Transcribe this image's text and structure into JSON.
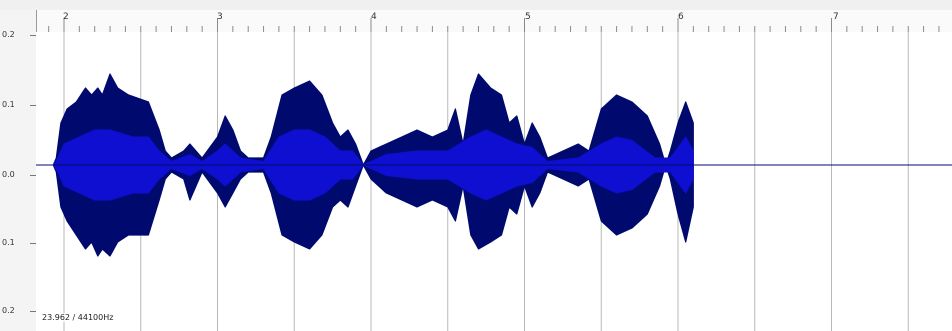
{
  "ruler": {
    "labels": [
      "2",
      "3",
      "4",
      "5",
      "6",
      "7"
    ]
  },
  "y_axis": {
    "labels": [
      "0.2",
      "0.1",
      "0.0",
      "0.1",
      "0.2"
    ]
  },
  "status": {
    "readout": "23.962 / 44100Hz"
  },
  "colors": {
    "wave_outer": "#000a6e",
    "wave_inner": "#0f0fd2",
    "gridline": "#b8b8b8"
  },
  "waveform": {
    "time_start": 1.93,
    "time_end": 7.93,
    "outer_upper": [
      [
        1.93,
        0.0
      ],
      [
        1.95,
        0.01
      ],
      [
        1.98,
        0.06
      ],
      [
        2.02,
        0.08
      ],
      [
        2.08,
        0.09
      ],
      [
        2.14,
        0.11
      ],
      [
        2.18,
        0.1
      ],
      [
        2.22,
        0.11
      ],
      [
        2.25,
        0.1
      ],
      [
        2.3,
        0.13
      ],
      [
        2.35,
        0.11
      ],
      [
        2.42,
        0.1
      ],
      [
        2.55,
        0.09
      ],
      [
        2.62,
        0.05
      ],
      [
        2.66,
        0.02
      ],
      [
        2.7,
        0.01
      ],
      [
        2.78,
        0.02
      ],
      [
        2.82,
        0.03
      ],
      [
        2.86,
        0.02
      ],
      [
        2.9,
        0.01
      ],
      [
        3.0,
        0.04
      ],
      [
        3.05,
        0.07
      ],
      [
        3.1,
        0.05
      ],
      [
        3.15,
        0.02
      ],
      [
        3.2,
        0.01
      ],
      [
        3.3,
        0.01
      ],
      [
        3.35,
        0.04
      ],
      [
        3.42,
        0.1
      ],
      [
        3.5,
        0.11
      ],
      [
        3.6,
        0.12
      ],
      [
        3.68,
        0.1
      ],
      [
        3.75,
        0.06
      ],
      [
        3.8,
        0.04
      ],
      [
        3.85,
        0.05
      ],
      [
        3.9,
        0.03
      ],
      [
        3.95,
        0.0
      ],
      [
        4.0,
        0.02
      ],
      [
        4.1,
        0.03
      ],
      [
        4.2,
        0.04
      ],
      [
        4.3,
        0.05
      ],
      [
        4.4,
        0.04
      ],
      [
        4.5,
        0.05
      ],
      [
        4.55,
        0.08
      ],
      [
        4.6,
        0.03
      ],
      [
        4.65,
        0.1
      ],
      [
        4.7,
        0.13
      ],
      [
        4.78,
        0.11
      ],
      [
        4.85,
        0.1
      ],
      [
        4.9,
        0.06
      ],
      [
        4.95,
        0.07
      ],
      [
        5.0,
        0.03
      ],
      [
        5.05,
        0.06
      ],
      [
        5.1,
        0.04
      ],
      [
        5.15,
        0.01
      ],
      [
        5.25,
        0.02
      ],
      [
        5.35,
        0.03
      ],
      [
        5.42,
        0.02
      ],
      [
        5.5,
        0.08
      ],
      [
        5.6,
        0.1
      ],
      [
        5.7,
        0.09
      ],
      [
        5.8,
        0.07
      ],
      [
        5.88,
        0.03
      ],
      [
        5.92,
        0.0
      ],
      [
        5.95,
        0.02
      ],
      [
        6.0,
        0.06
      ],
      [
        6.05,
        0.09
      ],
      [
        6.1,
        0.06
      ]
    ],
    "outer_lower": [
      [
        1.93,
        0.0
      ],
      [
        1.95,
        -0.01
      ],
      [
        1.98,
        -0.06
      ],
      [
        2.02,
        -0.08
      ],
      [
        2.08,
        -0.1
      ],
      [
        2.14,
        -0.12
      ],
      [
        2.18,
        -0.11
      ],
      [
        2.22,
        -0.13
      ],
      [
        2.25,
        -0.12
      ],
      [
        2.3,
        -0.13
      ],
      [
        2.35,
        -0.11
      ],
      [
        2.42,
        -0.1
      ],
      [
        2.55,
        -0.1
      ],
      [
        2.62,
        -0.05
      ],
      [
        2.66,
        -0.02
      ],
      [
        2.7,
        -0.01
      ],
      [
        2.78,
        -0.02
      ],
      [
        2.82,
        -0.05
      ],
      [
        2.86,
        -0.03
      ],
      [
        2.9,
        -0.01
      ],
      [
        3.0,
        -0.04
      ],
      [
        3.05,
        -0.06
      ],
      [
        3.1,
        -0.04
      ],
      [
        3.15,
        -0.02
      ],
      [
        3.2,
        -0.01
      ],
      [
        3.3,
        -0.01
      ],
      [
        3.35,
        -0.04
      ],
      [
        3.42,
        -0.1
      ],
      [
        3.5,
        -0.11
      ],
      [
        3.6,
        -0.12
      ],
      [
        3.68,
        -0.1
      ],
      [
        3.75,
        -0.06
      ],
      [
        3.8,
        -0.05
      ],
      [
        3.85,
        -0.06
      ],
      [
        3.9,
        -0.03
      ],
      [
        3.95,
        0.0
      ],
      [
        4.0,
        -0.02
      ],
      [
        4.1,
        -0.04
      ],
      [
        4.2,
        -0.05
      ],
      [
        4.3,
        -0.06
      ],
      [
        4.4,
        -0.05
      ],
      [
        4.5,
        -0.06
      ],
      [
        4.55,
        -0.08
      ],
      [
        4.6,
        -0.03
      ],
      [
        4.65,
        -0.1
      ],
      [
        4.7,
        -0.12
      ],
      [
        4.78,
        -0.11
      ],
      [
        4.85,
        -0.1
      ],
      [
        4.9,
        -0.06
      ],
      [
        4.95,
        -0.07
      ],
      [
        5.0,
        -0.03
      ],
      [
        5.05,
        -0.06
      ],
      [
        5.1,
        -0.04
      ],
      [
        5.15,
        -0.01
      ],
      [
        5.25,
        -0.02
      ],
      [
        5.35,
        -0.03
      ],
      [
        5.42,
        -0.02
      ],
      [
        5.5,
        -0.08
      ],
      [
        5.6,
        -0.1
      ],
      [
        5.7,
        -0.09
      ],
      [
        5.8,
        -0.07
      ],
      [
        5.88,
        -0.03
      ],
      [
        5.92,
        0.0
      ],
      [
        5.95,
        -0.02
      ],
      [
        6.0,
        -0.07
      ],
      [
        6.05,
        -0.11
      ],
      [
        6.1,
        -0.06
      ]
    ],
    "inner_upper": [
      [
        1.93,
        0.0
      ],
      [
        1.96,
        0.01
      ],
      [
        2.0,
        0.03
      ],
      [
        2.1,
        0.04
      ],
      [
        2.2,
        0.05
      ],
      [
        2.3,
        0.05
      ],
      [
        2.45,
        0.04
      ],
      [
        2.55,
        0.04
      ],
      [
        2.62,
        0.02
      ],
      [
        2.7,
        0.005
      ],
      [
        2.82,
        0.015
      ],
      [
        2.9,
        0.005
      ],
      [
        3.0,
        0.02
      ],
      [
        3.05,
        0.03
      ],
      [
        3.15,
        0.01
      ],
      [
        3.3,
        0.005
      ],
      [
        3.4,
        0.04
      ],
      [
        3.5,
        0.05
      ],
      [
        3.6,
        0.05
      ],
      [
        3.7,
        0.04
      ],
      [
        3.8,
        0.02
      ],
      [
        3.88,
        0.02
      ],
      [
        3.95,
        0.0
      ],
      [
        4.1,
        0.015
      ],
      [
        4.3,
        0.02
      ],
      [
        4.5,
        0.02
      ],
      [
        4.65,
        0.04
      ],
      [
        4.75,
        0.05
      ],
      [
        4.85,
        0.04
      ],
      [
        4.95,
        0.03
      ],
      [
        5.05,
        0.025
      ],
      [
        5.15,
        0.005
      ],
      [
        5.35,
        0.01
      ],
      [
        5.5,
        0.03
      ],
      [
        5.6,
        0.04
      ],
      [
        5.7,
        0.035
      ],
      [
        5.85,
        0.01
      ],
      [
        5.95,
        0.01
      ],
      [
        6.05,
        0.04
      ],
      [
        6.1,
        0.02
      ]
    ],
    "inner_lower": [
      [
        1.93,
        0.0
      ],
      [
        1.96,
        -0.01
      ],
      [
        2.0,
        -0.03
      ],
      [
        2.1,
        -0.04
      ],
      [
        2.2,
        -0.05
      ],
      [
        2.3,
        -0.05
      ],
      [
        2.45,
        -0.04
      ],
      [
        2.55,
        -0.04
      ],
      [
        2.62,
        -0.02
      ],
      [
        2.7,
        -0.005
      ],
      [
        2.82,
        -0.015
      ],
      [
        2.9,
        -0.005
      ],
      [
        3.0,
        -0.02
      ],
      [
        3.05,
        -0.03
      ],
      [
        3.15,
        -0.01
      ],
      [
        3.3,
        -0.005
      ],
      [
        3.4,
        -0.04
      ],
      [
        3.5,
        -0.05
      ],
      [
        3.6,
        -0.05
      ],
      [
        3.7,
        -0.04
      ],
      [
        3.8,
        -0.02
      ],
      [
        3.88,
        -0.02
      ],
      [
        3.95,
        0.0
      ],
      [
        4.1,
        -0.015
      ],
      [
        4.3,
        -0.02
      ],
      [
        4.5,
        -0.02
      ],
      [
        4.65,
        -0.04
      ],
      [
        4.75,
        -0.05
      ],
      [
        4.85,
        -0.04
      ],
      [
        4.95,
        -0.03
      ],
      [
        5.05,
        -0.025
      ],
      [
        5.15,
        -0.005
      ],
      [
        5.35,
        -0.01
      ],
      [
        5.5,
        -0.03
      ],
      [
        5.6,
        -0.04
      ],
      [
        5.7,
        -0.035
      ],
      [
        5.85,
        -0.01
      ],
      [
        5.95,
        -0.01
      ],
      [
        6.05,
        -0.04
      ],
      [
        6.1,
        -0.02
      ]
    ]
  }
}
